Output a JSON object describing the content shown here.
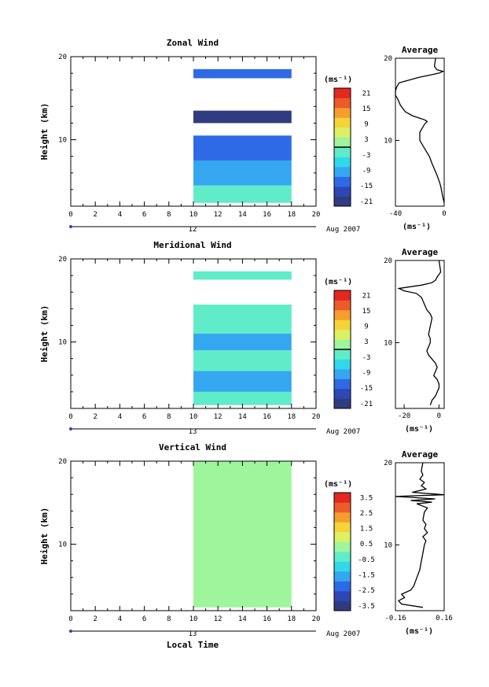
{
  "chart_data": [
    {
      "type": "heatmap",
      "title": "Zonal Wind",
      "ylabel": "Height (km)",
      "xlabel": "",
      "xlim": [
        0,
        20
      ],
      "ylim": [
        2,
        20
      ],
      "x_ticks": [
        "0",
        "2",
        "4",
        "6",
        "8",
        "10",
        "12",
        "14",
        "16",
        "18",
        "20"
      ],
      "y_ticks": [
        "10",
        "20"
      ],
      "date_label": "Aug 2007",
      "day_label": "12",
      "colorbar": {
        "label": "(ms⁻¹)",
        "ticks": [
          "21",
          "15",
          "9",
          "3",
          "-3",
          "-9",
          "-15",
          "-21"
        ],
        "contour_level": 0
      },
      "data_x_range": [
        10,
        18.5
      ],
      "cells": [
        {
          "x": [
            10,
            18
          ],
          "y": [
            2.4,
            4.5
          ],
          "v": -3
        },
        {
          "x": [
            10,
            18
          ],
          "y": [
            4.5,
            7.5
          ],
          "v": -9
        },
        {
          "x": [
            10,
            18
          ],
          "y": [
            7.5,
            10.5
          ],
          "v": -15
        },
        {
          "x": [
            10,
            18
          ],
          "y": [
            12,
            13.5
          ],
          "v": -21
        },
        {
          "x": [
            10,
            18
          ],
          "y": [
            17.4,
            18.5
          ],
          "v": -15
        }
      ],
      "profile": {
        "title": "Average",
        "xlabel": "(ms⁻¹)",
        "xlim": [
          -40,
          0
        ],
        "x_ticks": [
          "-40",
          "0"
        ],
        "y_ticks": [
          "10",
          "20"
        ],
        "points": [
          [
            0,
            2.4
          ],
          [
            -1,
            3
          ],
          [
            -2,
            3.8
          ],
          [
            -3,
            4.5
          ],
          [
            -4,
            5
          ],
          [
            -6,
            5.8
          ],
          [
            -8,
            6.5
          ],
          [
            -10,
            7.2
          ],
          [
            -12,
            8
          ],
          [
            -14,
            8.5
          ],
          [
            -16,
            9
          ],
          [
            -18,
            9.5
          ],
          [
            -20,
            10
          ],
          [
            -20,
            10.5
          ],
          [
            -20,
            11
          ],
          [
            -18,
            11.5
          ],
          [
            -16,
            12
          ],
          [
            -14,
            12.3
          ],
          [
            -16,
            12.5
          ],
          [
            -20,
            12.7
          ],
          [
            -26,
            13
          ],
          [
            -32,
            13.5
          ],
          [
            -36,
            14.3
          ],
          [
            -38,
            15
          ],
          [
            -40,
            15.5
          ],
          [
            -40,
            16
          ],
          [
            -39,
            16.5
          ],
          [
            -37,
            17
          ],
          [
            -30,
            17.3
          ],
          [
            -20,
            17.7
          ],
          [
            -10,
            18
          ],
          [
            -4,
            18.2
          ],
          [
            -1,
            18.4
          ],
          [
            -6,
            18.6
          ],
          [
            -8,
            19
          ],
          [
            -7,
            20
          ]
        ]
      }
    },
    {
      "type": "heatmap",
      "title": "Meridional Wind",
      "ylabel": "Height (km)",
      "xlabel": "",
      "xlim": [
        0,
        20
      ],
      "ylim": [
        2,
        20
      ],
      "x_ticks": [
        "0",
        "2",
        "4",
        "6",
        "8",
        "10",
        "12",
        "14",
        "16",
        "18",
        "20"
      ],
      "y_ticks": [
        "10",
        "20"
      ],
      "date_label": "Aug 2007",
      "day_label": "13",
      "colorbar": {
        "label": "(ms⁻¹)",
        "ticks": [
          "21",
          "15",
          "9",
          "3",
          "-3",
          "-9",
          "-15",
          "-21"
        ],
        "contour_level": 0
      },
      "data_x_range": [
        10,
        18.5
      ],
      "cells": [
        {
          "x": [
            10,
            18
          ],
          "y": [
            2.4,
            4
          ],
          "v": -3
        },
        {
          "x": [
            10,
            18
          ],
          "y": [
            4,
            6.5
          ],
          "v": -9
        },
        {
          "x": [
            10,
            18
          ],
          "y": [
            6.5,
            9
          ],
          "v": -3
        },
        {
          "x": [
            10,
            18
          ],
          "y": [
            9,
            11
          ],
          "v": -9
        },
        {
          "x": [
            10,
            18
          ],
          "y": [
            11,
            14.5
          ],
          "v": -3
        },
        {
          "x": [
            10,
            18
          ],
          "y": [
            17.5,
            18.5
          ],
          "v": -3
        }
      ],
      "profile": {
        "title": "Average",
        "xlabel": "(ms⁻¹)",
        "xlim": [
          -25,
          3
        ],
        "x_ticks": [
          "-20",
          "0"
        ],
        "y_ticks": [
          "10",
          "20"
        ],
        "points": [
          [
            -5,
            2.4
          ],
          [
            -4,
            3
          ],
          [
            -2,
            3.5
          ],
          [
            -1,
            4
          ],
          [
            0,
            4.5
          ],
          [
            0,
            5
          ],
          [
            -1,
            5.5
          ],
          [
            -3,
            6
          ],
          [
            -2,
            6.5
          ],
          [
            -1,
            7
          ],
          [
            -2,
            7.5
          ],
          [
            -4,
            8
          ],
          [
            -6,
            8.5
          ],
          [
            -7,
            9
          ],
          [
            -6,
            9.5
          ],
          [
            -5,
            10
          ],
          [
            -5,
            10.5
          ],
          [
            -6,
            11
          ],
          [
            -5,
            12
          ],
          [
            -4,
            13
          ],
          [
            -5,
            13.5
          ],
          [
            -7,
            14
          ],
          [
            -8,
            14.5
          ],
          [
            -9,
            15
          ],
          [
            -10,
            15.5
          ],
          [
            -13,
            16
          ],
          [
            -20,
            16.3
          ],
          [
            -23,
            16.6
          ],
          [
            -10,
            17
          ],
          [
            -4,
            17.3
          ],
          [
            -2,
            17.6
          ],
          [
            -1,
            18
          ],
          [
            0,
            18.3
          ],
          [
            1,
            18.6
          ],
          [
            0,
            20
          ]
        ]
      }
    },
    {
      "type": "heatmap",
      "title": "Vertical Wind",
      "ylabel": "Height (km)",
      "xlabel": "Local Time",
      "xlim": [
        0,
        20
      ],
      "ylim": [
        2,
        20
      ],
      "x_ticks": [
        "0",
        "2",
        "4",
        "6",
        "8",
        "10",
        "12",
        "14",
        "16",
        "18",
        "20"
      ],
      "y_ticks": [
        "10",
        "20"
      ],
      "date_label": "Aug 2007",
      "day_label": "13",
      "colorbar": {
        "label": "(ms⁻¹)",
        "ticks": [
          "3.5",
          "2.5",
          "1.5",
          "0.5",
          "-0.5",
          "-1.5",
          "-2.5",
          "-3.5"
        ]
      },
      "data_x_range": [
        10,
        18.5
      ],
      "cells": [
        {
          "x": [
            10,
            18
          ],
          "y": [
            2.4,
            20
          ],
          "v": 0
        }
      ],
      "profile": {
        "title": "Average",
        "xlabel": "(ms⁻¹)",
        "xlim": [
          -0.16,
          0.16
        ],
        "x_ticks": [
          "-0.16",
          "0.16"
        ],
        "y_ticks": [
          "10",
          "20"
        ],
        "points": [
          [
            0.02,
            2.4
          ],
          [
            -0.12,
            2.8
          ],
          [
            -0.14,
            3.2
          ],
          [
            -0.1,
            3.6
          ],
          [
            -0.12,
            4
          ],
          [
            -0.06,
            4.5
          ],
          [
            -0.04,
            5
          ],
          [
            -0.02,
            6
          ],
          [
            0,
            7
          ],
          [
            0.01,
            8
          ],
          [
            0.02,
            9
          ],
          [
            0.03,
            10
          ],
          [
            0.04,
            10.5
          ],
          [
            0.02,
            11
          ],
          [
            0.05,
            11.5
          ],
          [
            0.03,
            12
          ],
          [
            0.04,
            12.5
          ],
          [
            0.02,
            13
          ],
          [
            0.03,
            14
          ],
          [
            0.05,
            14.5
          ],
          [
            -0.02,
            15
          ],
          [
            0.08,
            15.2
          ],
          [
            -0.06,
            15.4
          ],
          [
            0.1,
            15.6
          ],
          [
            -0.16,
            15.9
          ],
          [
            0.16,
            16.1
          ],
          [
            -0.05,
            16.4
          ],
          [
            0.04,
            16.8
          ],
          [
            0.01,
            17.2
          ],
          [
            0.03,
            17.6
          ],
          [
            0,
            18
          ],
          [
            0.02,
            18.5
          ],
          [
            0.01,
            19
          ],
          [
            0.02,
            20
          ]
        ]
      }
    }
  ]
}
